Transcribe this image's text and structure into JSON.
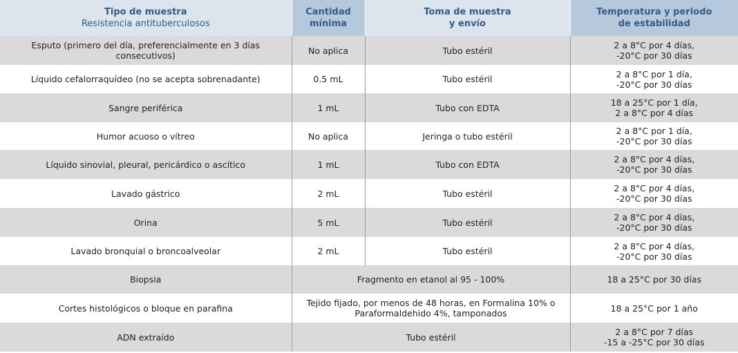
{
  "headers": [
    {
      "title": "Tipo de muestra",
      "subtitle": "Resistencia antituberculosos"
    },
    {
      "lines": [
        "Cantidad",
        "mínima"
      ]
    },
    {
      "lines": [
        "Toma de muestra",
        "y envío"
      ]
    },
    {
      "lines": [
        "Temperatura y periodo",
        "de estabilidad"
      ]
    }
  ],
  "rows": [
    {
      "tipo": [
        "Esputo (primero del día, preferencialmente en 3 días",
        "consecutivos)"
      ],
      "cantidad": "No aplica",
      "toma": "Tubo estéril",
      "temp": [
        "2 a 8°C por 4 días,",
        "-20°C por 30 días"
      ]
    },
    {
      "tipo": [
        "Líquido cefalorraquídeo (no se acepta sobrenadante)"
      ],
      "cantidad": "0.5 mL",
      "toma": "Tubo estéril",
      "temp": [
        "2 a 8°C por 1 día,",
        "-20°C por 30 días"
      ]
    },
    {
      "tipo": [
        "Sangre periférica"
      ],
      "cantidad": "1 mL",
      "toma": "Tubo con EDTA",
      "temp": [
        "18 a 25°C por 1 día,",
        "2 a 8°C por 4 días"
      ]
    },
    {
      "tipo": [
        "Humor acuoso o vítreo"
      ],
      "cantidad": "No aplica",
      "toma": "Jeringa o tubo estéril",
      "temp": [
        "2 a 8°C por 1 día,",
        "-20°C por 30 días"
      ]
    },
    {
      "tipo": [
        "Líquido sinovial, pleural, pericárdico o ascítico"
      ],
      "cantidad": "1 mL",
      "toma": "Tubo con EDTA",
      "temp": [
        "2 a 8°C por 4 días,",
        "-20°C por 30 días"
      ]
    },
    {
      "tipo": [
        "Lavado gástrico"
      ],
      "cantidad": "2 mL",
      "toma": "Tubo estéril",
      "temp": [
        "2 a 8°C por 4 días,",
        "-20°C por 30 días"
      ]
    },
    {
      "tipo": [
        "Orina"
      ],
      "cantidad": "5 mL",
      "toma": "Tubo estéril",
      "temp": [
        "2 a 8°C por 4 días,",
        "-20°C por 30 días"
      ]
    },
    {
      "tipo": [
        "Lavado bronquial o broncoalveolar"
      ],
      "cantidad": "2 mL",
      "toma": "Tubo estéril",
      "temp": [
        "2 a 8°C por 4 días,",
        "-20°C por 30 días"
      ]
    },
    {
      "tipo": [
        "Biopsia"
      ],
      "merged": [
        "Fragmento en etanol al 95 - 100%"
      ],
      "temp": [
        "18 a 25°C por 30 días"
      ]
    },
    {
      "tipo": [
        "Cortes histológicos o  bloque en parafina"
      ],
      "merged": [
        "Tejido fijado, por menos de 48 horas, en Formalina 10% o",
        "Paraformaldehido 4%, tamponados"
      ],
      "temp": [
        "18 a 25°C por 1 año"
      ]
    },
    {
      "tipo": [
        "ADN extraído"
      ],
      "merged": [
        "Tubo estéril"
      ],
      "temp": [
        "2 a 8°C por 7 días",
        "-15 a -25°C por 30 días"
      ]
    }
  ]
}
